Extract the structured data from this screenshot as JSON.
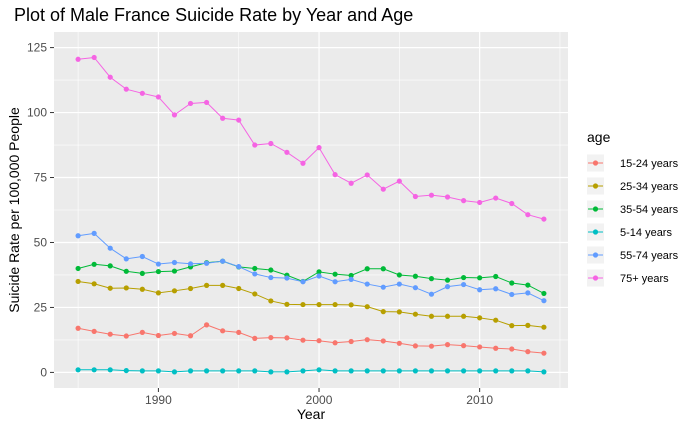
{
  "chart_data": {
    "type": "line",
    "title": "Plot of Male France Suicide Rate by Year and Age",
    "xlabel": "Year",
    "ylabel": "Suicide Rate per 100,000 People",
    "xlim": [
      1983.5,
      2015.5
    ],
    "ylim": [
      -6,
      131
    ],
    "x_ticks": [
      1990,
      2000,
      2010
    ],
    "y_ticks": [
      0,
      25,
      50,
      75,
      100,
      125
    ],
    "x_tick_labels": [
      "1990",
      "2000",
      "2010"
    ],
    "y_tick_labels": [
      "0",
      "25",
      "50",
      "75",
      "100",
      "125"
    ],
    "grid": true,
    "legend_placement": "right",
    "legend_title": "age",
    "x": [
      1985,
      1986,
      1987,
      1988,
      1989,
      1990,
      1991,
      1992,
      1993,
      1994,
      1995,
      1996,
      1997,
      1998,
      1999,
      2000,
      2001,
      2002,
      2003,
      2004,
      2005,
      2006,
      2007,
      2008,
      2009,
      2010,
      2011,
      2012,
      2013,
      2014
    ],
    "series": [
      {
        "name": "15-24 years",
        "color": "#F8766D",
        "values": [
          17.0,
          15.8,
          14.7,
          14.0,
          15.4,
          14.2,
          15.0,
          14.1,
          18.3,
          16.0,
          15.4,
          13.1,
          13.4,
          13.3,
          12.4,
          12.2,
          11.4,
          11.9,
          12.6,
          12.1,
          11.2,
          10.2,
          10.1,
          10.7,
          10.3,
          9.8,
          9.3,
          9.0,
          8.0,
          7.4
        ]
      },
      {
        "name": "25-34 years",
        "color": "#B79F00",
        "values": [
          35.0,
          34.1,
          32.4,
          32.5,
          32.0,
          30.6,
          31.4,
          32.3,
          33.5,
          33.5,
          32.3,
          30.2,
          27.5,
          26.2,
          26.1,
          26.1,
          26.1,
          26.0,
          25.3,
          23.4,
          23.3,
          22.4,
          21.6,
          21.6,
          21.6,
          21.0,
          20.1,
          18.0,
          18.1,
          17.4
        ]
      },
      {
        "name": "35-54 years",
        "color": "#00BA38",
        "values": [
          40.0,
          41.6,
          41.0,
          38.9,
          38.1,
          38.8,
          39.0,
          40.6,
          42.2,
          42.8,
          40.6,
          40.0,
          39.4,
          37.4,
          35.0,
          38.7,
          37.8,
          37.3,
          39.9,
          39.9,
          37.5,
          37.0,
          36.1,
          35.5,
          36.5,
          36.4,
          36.9,
          34.4,
          33.6,
          30.4
        ]
      },
      {
        "name": "5-14 years",
        "color": "#00BFC4",
        "values": [
          1.0,
          1.0,
          1.0,
          0.7,
          0.6,
          0.6,
          0.2,
          0.6,
          0.6,
          0.6,
          0.6,
          0.6,
          0.2,
          0.2,
          0.6,
          1.0,
          0.6,
          0.6,
          0.6,
          0.6,
          0.6,
          0.6,
          0.6,
          0.6,
          0.6,
          0.6,
          0.6,
          0.6,
          0.6,
          0.2
        ]
      },
      {
        "name": "55-74 years",
        "color": "#619CFF",
        "values": [
          52.6,
          53.5,
          47.8,
          43.7,
          44.6,
          41.7,
          42.3,
          41.8,
          42.0,
          42.8,
          40.7,
          37.9,
          36.5,
          36.3,
          34.9,
          37.1,
          34.9,
          35.8,
          34.0,
          32.8,
          34.0,
          32.6,
          30.1,
          33.0,
          33.8,
          31.8,
          32.2,
          30.0,
          30.6,
          27.6
        ]
      },
      {
        "name": "75+ years",
        "color": "#F564E3",
        "values": [
          120.5,
          121.2,
          113.6,
          109.0,
          107.4,
          106.0,
          99.1,
          103.5,
          103.9,
          97.8,
          97.1,
          87.5,
          88.1,
          84.7,
          80.5,
          86.5,
          76.1,
          72.8,
          76.0,
          70.5,
          73.6,
          67.7,
          68.2,
          67.5,
          66.1,
          65.4,
          67.1,
          65.0,
          60.7,
          59.0
        ]
      }
    ]
  }
}
